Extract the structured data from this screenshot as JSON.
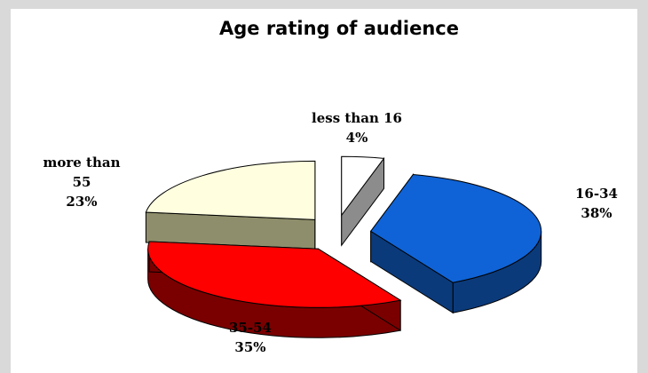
{
  "chart_data": {
    "type": "pie",
    "title": "Age rating of audience",
    "slices": [
      {
        "label_lines": [
          "less than 16",
          "4%"
        ],
        "value": 4,
        "top_color": "#ffffff",
        "side_color": "#8c8c8c"
      },
      {
        "label_lines": [
          "16-34",
          "38%"
        ],
        "value": 38,
        "top_color": "#0f63d6",
        "side_color": "#0b3a7a"
      },
      {
        "label_lines": [
          "35-54",
          "35%"
        ],
        "value": 35,
        "top_color": "#ff0000",
        "side_color": "#7a0000"
      },
      {
        "label_lines": [
          "more than",
          "55",
          "23%"
        ],
        "value": 23,
        "top_color": "#ffffe0",
        "side_color": "#8e8e6c"
      }
    ],
    "exploded": true,
    "three_d": true,
    "legend": "none"
  }
}
